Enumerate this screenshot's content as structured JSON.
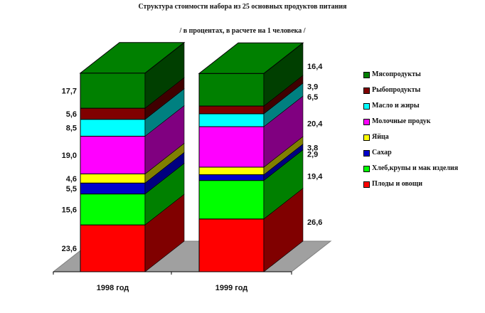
{
  "chart_data": {
    "type": "bar",
    "stacked": true,
    "title": "Структура стоимости набора из 25 основных продуктов питания",
    "subtitle": "/ в процентах, в расчете на 1 человека /",
    "categories": [
      "1998 год",
      "1999 год"
    ],
    "series": [
      {
        "name": "Плоды и овощи",
        "values": [
          23.6,
          26.6
        ],
        "labels": [
          "23,6",
          "26,6"
        ],
        "color": "#ff0000",
        "side": "#800000"
      },
      {
        "name": "Хлеб,крупы и мак изделия",
        "values": [
          15.6,
          19.4
        ],
        "labels": [
          "15,6",
          "19,4"
        ],
        "color": "#00ff00",
        "side": "#008000"
      },
      {
        "name": "Сахар",
        "values": [
          5.5,
          2.9
        ],
        "labels": [
          "5,5",
          "2,9"
        ],
        "color": "#0000cc",
        "side": "#000080"
      },
      {
        "name": "Яйца",
        "values": [
          4.6,
          3.8
        ],
        "labels": [
          "4,6",
          "3,8"
        ],
        "color": "#ffff00",
        "side": "#808000"
      },
      {
        "name": "Молочные продук",
        "values": [
          19.0,
          20.4
        ],
        "labels": [
          "19,0",
          "20,4"
        ],
        "color": "#ff00ff",
        "side": "#800080"
      },
      {
        "name": "Масло и жиры",
        "values": [
          8.5,
          6.5
        ],
        "labels": [
          "8,5",
          "6,5"
        ],
        "color": "#00ffff",
        "side": "#008080"
      },
      {
        "name": "Рыбопродукты",
        "values": [
          5.6,
          3.9
        ],
        "labels": [
          "5,6",
          "3,9"
        ],
        "color": "#800000",
        "side": "#400000"
      },
      {
        "name": "Мясопродукты",
        "values": [
          17.7,
          16.4
        ],
        "labels": [
          "17,7",
          "16,4"
        ],
        "color": "#008000",
        "side": "#003f00"
      }
    ],
    "legend_order": [
      7,
      6,
      5,
      4,
      3,
      2,
      1,
      0
    ],
    "legend_position": "right",
    "ylim": [
      0,
      100
    ],
    "grid": false
  }
}
